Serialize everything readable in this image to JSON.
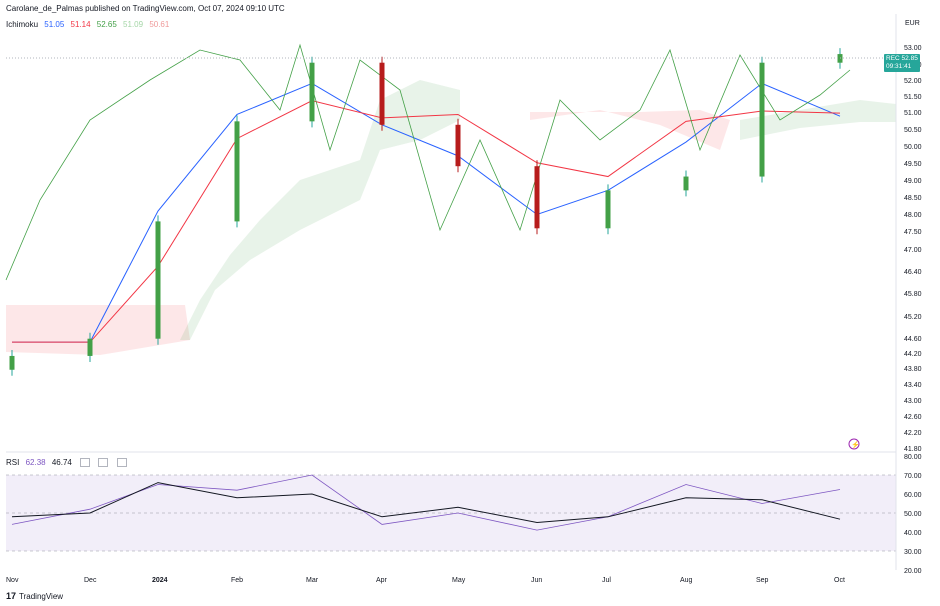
{
  "header": {
    "title": "Carolane_de_Palmas published on TradingView.com, Oct 07, 2024 09:10 UTC"
  },
  "ichimoku": {
    "label": "Ichimoku",
    "values": [
      "51.05",
      "51.14",
      "52.65",
      "51.09",
      "50.61"
    ],
    "colors": [
      "#2962ff",
      "#f23645",
      "#43a047",
      "#a5d6a7",
      "#ef9a9a"
    ]
  },
  "rsi_legend": {
    "label": "RSI",
    "values": [
      "62.38",
      "46.74"
    ],
    "colors": [
      "#7e57c2",
      "#131722"
    ]
  },
  "currency": "EUR",
  "price_tag": {
    "value": "52.85",
    "ticker": "REC",
    "countdown": "09:31:41"
  },
  "footer": {
    "brand": "TradingView"
  },
  "chart_data": [
    {
      "type": "candlestick",
      "title": "",
      "y_ticks": [
        "53.00",
        "52.50",
        "52.00",
        "51.50",
        "51.00",
        "50.50",
        "50.00",
        "49.50",
        "49.00",
        "48.50",
        "48.00",
        "47.50",
        "47.00",
        "46.40",
        "45.80",
        "45.20",
        "44.60",
        "44.20",
        "43.80",
        "43.40",
        "43.00",
        "42.60",
        "42.20",
        "41.80"
      ],
      "x_ticks": [
        "Nov",
        "Dec",
        "2024",
        "Feb",
        "Mar",
        "Apr",
        "May",
        "Jun",
        "Jul",
        "Aug",
        "Sep",
        "Oct"
      ],
      "price_series": {
        "x": [
          "Nov",
          "Dec",
          "2024",
          "Feb",
          "Mar",
          "Apr",
          "May",
          "Jun",
          "Jul",
          "Aug",
          "Sep",
          "Oct"
        ],
        "close": [
          44.1,
          44.6,
          48.0,
          50.9,
          52.6,
          50.8,
          49.6,
          47.8,
          48.9,
          49.3,
          52.6,
          52.85
        ]
      },
      "series": [
        {
          "name": "Ichimoku Conversion",
          "values": [
            44.5,
            44.5,
            48.3,
            51.1,
            52.0,
            50.8,
            49.9,
            48.2,
            48.9,
            50.3,
            52.0,
            51.05
          ]
        },
        {
          "name": "Ichimoku Base",
          "values": [
            44.5,
            44.5,
            46.7,
            50.4,
            51.5,
            51.0,
            51.1,
            49.7,
            49.3,
            50.9,
            51.2,
            51.14
          ]
        }
      ]
    },
    {
      "type": "line",
      "title": "RSI",
      "ylim": [
        20,
        80
      ],
      "y_ticks": [
        "80.00",
        "70.00",
        "60.00",
        "50.00",
        "40.00",
        "30.00",
        "20.00"
      ],
      "bands": [
        70,
        50,
        30
      ],
      "series": [
        {
          "name": "RSI",
          "values": [
            44,
            52,
            65,
            62,
            70,
            44,
            50,
            41,
            48,
            65,
            55,
            62.38
          ]
        },
        {
          "name": "RSI-based MA",
          "values": [
            48,
            50,
            66,
            58,
            60,
            48,
            53,
            45,
            48,
            58,
            57,
            46.74
          ]
        }
      ]
    }
  ]
}
